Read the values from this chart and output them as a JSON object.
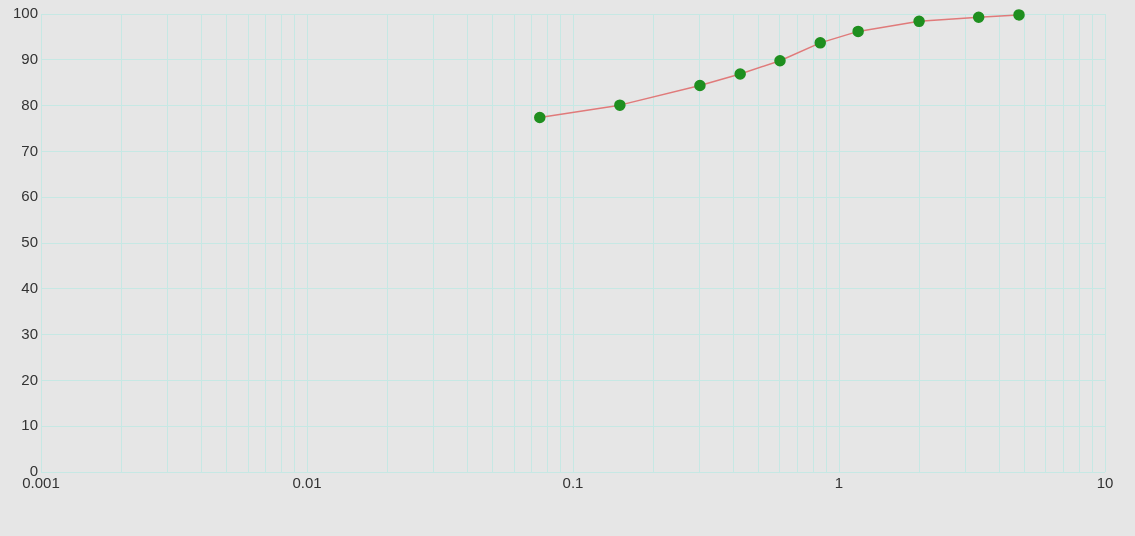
{
  "chart_data": {
    "type": "line",
    "log": "x",
    "grid": true,
    "marker": "circle",
    "line_style": "solid",
    "legend": false,
    "xlim": [
      0.001,
      10
    ],
    "xticks": [
      0.001,
      {
        "value": 0.002,
        "label": null
      },
      {
        "value": 0.003,
        "label": null
      },
      {
        "value": 0.004,
        "label": null
      },
      {
        "value": 0.005,
        "label": null
      },
      {
        "value": 0.006,
        "label": null
      },
      {
        "value": 0.007,
        "label": null
      },
      {
        "value": 0.008,
        "label": null
      },
      {
        "value": 0.009,
        "label": null
      },
      0.01,
      {
        "value": 0.02,
        "label": null
      },
      {
        "value": 0.03,
        "label": null
      },
      {
        "value": 0.04,
        "label": null
      },
      {
        "value": 0.05,
        "label": null
      },
      {
        "value": 0.06,
        "label": null
      },
      {
        "value": 0.07,
        "label": null
      },
      {
        "value": 0.08,
        "label": null
      },
      {
        "value": 0.09,
        "label": null
      },
      0.1,
      {
        "value": 0.2,
        "label": null
      },
      {
        "value": 0.3,
        "label": null
      },
      {
        "value": 0.4,
        "label": null
      },
      {
        "value": 0.5,
        "label": null
      },
      {
        "value": 0.6,
        "label": null
      },
      {
        "value": 0.7,
        "label": null
      },
      {
        "value": 0.8,
        "label": null
      },
      {
        "value": 0.9,
        "label": null
      },
      1,
      {
        "value": 2,
        "label": null
      },
      {
        "value": 3,
        "label": null
      },
      {
        "value": 4,
        "label": null
      },
      {
        "value": 5,
        "label": null
      },
      {
        "value": 6,
        "label": null
      },
      {
        "value": 7,
        "label": null
      },
      {
        "value": 8,
        "label": null
      },
      {
        "value": 9,
        "label": null
      },
      10
    ],
    "ylim": [
      0,
      100
    ],
    "yticks": [
      0,
      10,
      20,
      30,
      40,
      50,
      60,
      70,
      80,
      90,
      100
    ],
    "series": [
      {
        "color": "#e07a7a",
        "colors": [
          "#1f8f1f",
          "#1f8f1f",
          "#1f8f1f",
          "#1f8f1f",
          "#1f8f1f",
          "#1f8f1f",
          "#1f8f1f",
          "#1f8f1f",
          "#1f8f1f",
          "#1f8f1f"
        ],
        "x": [
          0.075,
          0.15,
          0.3,
          0.425,
          0.6,
          0.85,
          1.18,
          2,
          3.35,
          4.75
        ],
        "values": [
          77.4,
          80.1,
          84.4,
          86.9,
          89.8,
          93.7,
          96.2,
          98.4,
          99.3,
          99.8
        ]
      }
    ]
  }
}
